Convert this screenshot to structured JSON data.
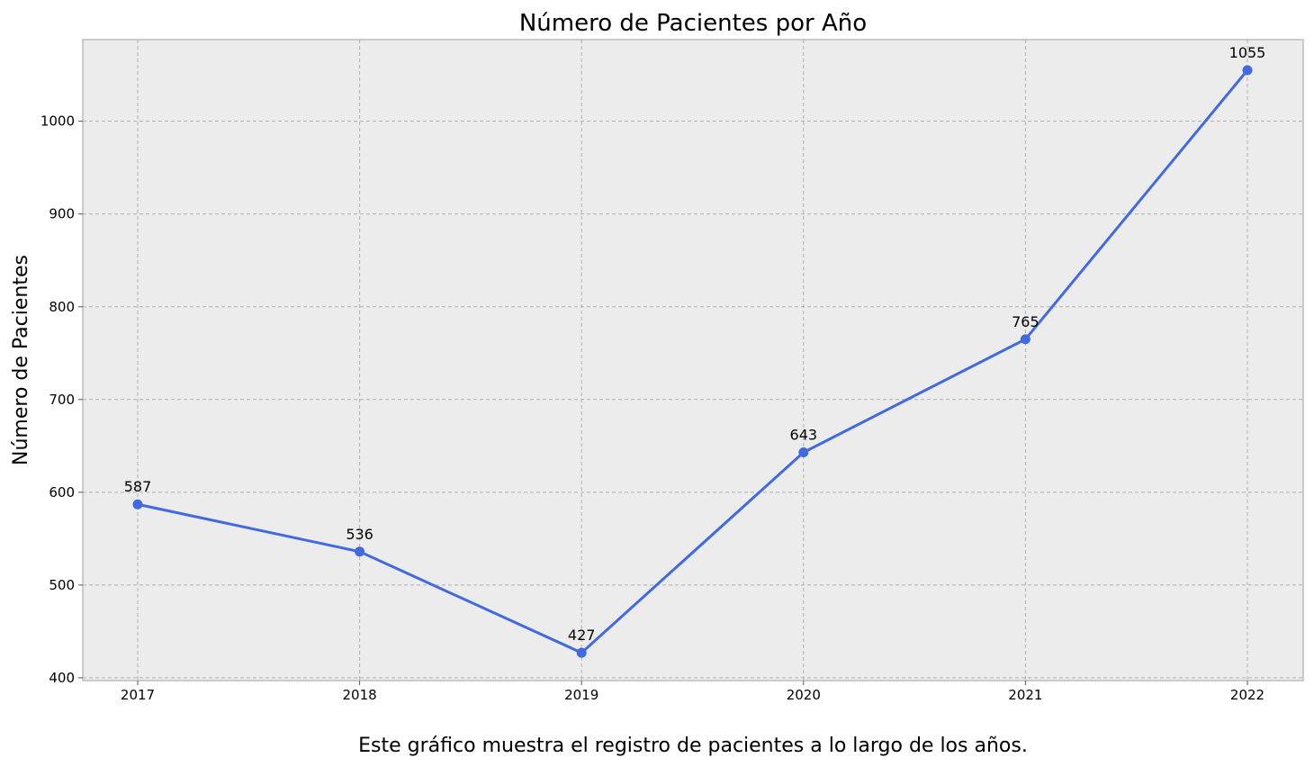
{
  "chart_data": {
    "type": "line",
    "title": "Número de Pacientes por Año",
    "xlabel": "",
    "ylabel": "Número de Pacientes",
    "caption": "Este gráfico muestra el registro de pacientes a lo largo de los años.",
    "categories": [
      "2017",
      "2018",
      "2019",
      "2020",
      "2021",
      "2022"
    ],
    "series": [
      {
        "values": [
          587,
          536,
          427,
          643,
          765,
          1055
        ]
      }
    ],
    "ylim": [
      397,
      1088
    ],
    "yticks": [
      400,
      500,
      600,
      700,
      800,
      900,
      1000
    ],
    "ytick_labels": [
      "400",
      "500",
      "600",
      "700",
      "800",
      "900",
      "1000"
    ],
    "grid": true,
    "data_labels": true,
    "colors": {
      "line": "#4169e1",
      "plot_background": "#ececec",
      "axes_frame": "#bcbcbc"
    }
  }
}
